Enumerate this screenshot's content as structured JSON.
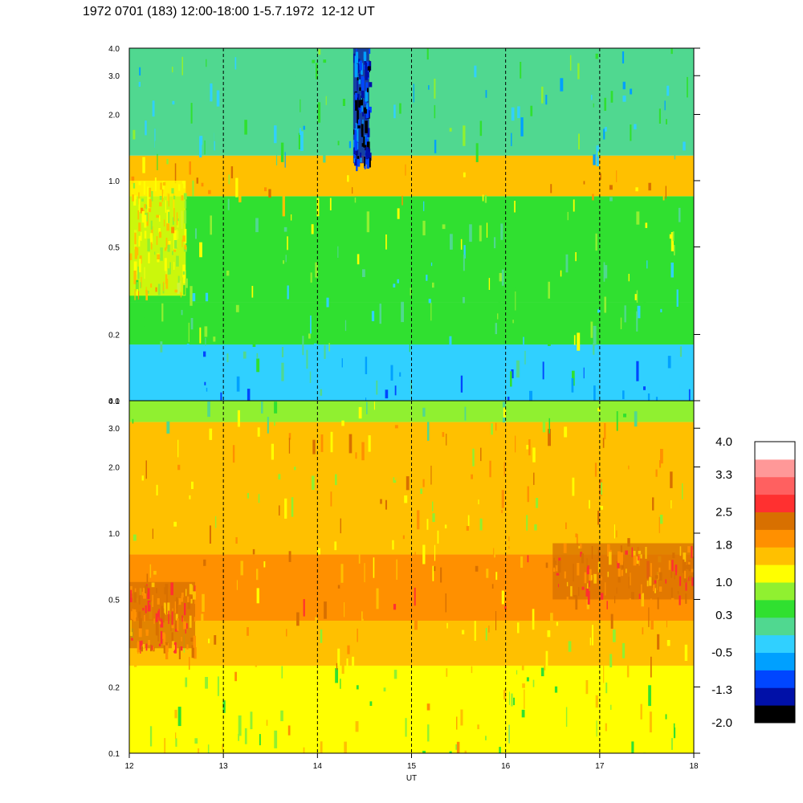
{
  "title": "1972 0701 (183) 12:00-18:00 1-5.7.1972  12-12 UT",
  "chart_data": {
    "type": "heatmap",
    "title": "1972 0701 (183) 12:00-18:00 1-5.7.1972  12-12 UT",
    "xlabel": "UT",
    "xlim": [
      12,
      18
    ],
    "x_ticks": [
      "12",
      "13",
      "14",
      "15",
      "16",
      "17",
      "18"
    ],
    "x_tick_values": [
      12,
      13,
      14,
      15,
      16,
      17,
      18
    ],
    "dashed_grid_x": [
      13,
      14,
      15,
      16,
      17
    ],
    "y_scale": "log",
    "ylim": [
      0.1,
      4.0
    ],
    "y_ticks": [
      "0.1",
      "0.2",
      "0.5",
      "1.0",
      "2.0",
      "3.0",
      "4.0"
    ],
    "y_tick_values": [
      0.1,
      0.2,
      0.5,
      1.0,
      2.0,
      3.0,
      4.0
    ],
    "panels": [
      {
        "name": "upper",
        "bands": [
          {
            "y": [
              0.1,
              0.18
            ],
            "level": -0.5
          },
          {
            "y": [
              0.18,
              0.28
            ],
            "level": 0.3
          },
          {
            "y": [
              0.28,
              0.45
            ],
            "level": 0.3
          },
          {
            "y": [
              0.45,
              0.85
            ],
            "level": 0.6
          },
          {
            "y": [
              0.85,
              1.3
            ],
            "level": 1.6
          },
          {
            "y": [
              1.3,
              4.0
            ],
            "level": 0.0
          }
        ],
        "features": [
          {
            "x": [
              14.38,
              14.55
            ],
            "y": [
              1.2,
              4.0
            ],
            "level": -1.3
          },
          {
            "x": [
              12.0,
              12.6
            ],
            "y": [
              0.3,
              1.0
            ],
            "level": 1.2
          }
        ]
      },
      {
        "name": "lower",
        "bands": [
          {
            "y": [
              0.1,
              0.25
            ],
            "level": 1.0
          },
          {
            "y": [
              0.25,
              0.4
            ],
            "level": 1.6
          },
          {
            "y": [
              0.4,
              0.8
            ],
            "level": 1.9
          },
          {
            "y": [
              0.8,
              3.2
            ],
            "level": 1.5
          },
          {
            "y": [
              3.2,
              4.0
            ],
            "level": 0.7
          }
        ],
        "features": [
          {
            "x": [
              16.5,
              18.0
            ],
            "y": [
              0.5,
              0.9
            ],
            "level": 2.2
          },
          {
            "x": [
              12.0,
              12.7
            ],
            "y": [
              0.3,
              0.6
            ],
            "level": 2.2
          }
        ]
      }
    ],
    "colorbar": {
      "labels": [
        "4.0",
        "3.3",
        "2.5",
        "1.8",
        "1.0",
        "0.3",
        "-0.5",
        "-1.3",
        "-2.0"
      ],
      "label_values": [
        4.0,
        3.3,
        2.5,
        1.8,
        1.0,
        0.3,
        -0.5,
        -1.3,
        -2.0
      ],
      "range": [
        -2.0,
        4.0
      ],
      "colors": [
        "#000000",
        "#0010a8",
        "#0046ff",
        "#00a0ff",
        "#30d0ff",
        "#50d890",
        "#30e030",
        "#90f030",
        "#ffff00",
        "#ffc000",
        "#ff9000",
        "#d87000",
        "#ff3030",
        "#ff6060",
        "#ff9898",
        "#ffffff"
      ]
    }
  }
}
